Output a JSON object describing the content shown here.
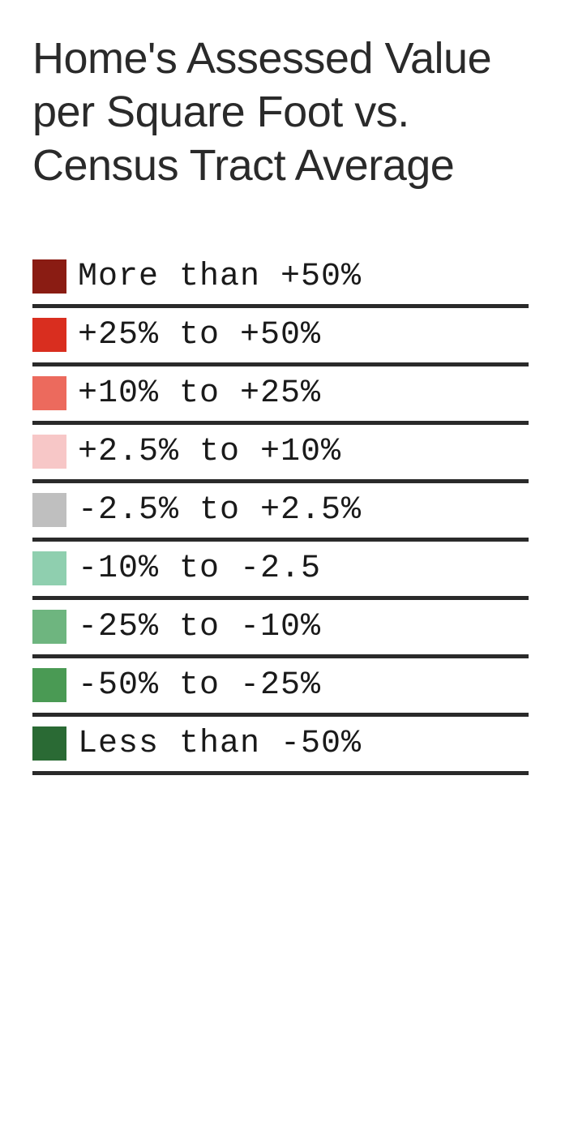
{
  "title": "Home's Assessed Value per Square Foot vs. Census Tract Average",
  "title_fontsize": 54,
  "title_color": "#2a2a2a",
  "legend": {
    "label_font": "monospace",
    "label_fontsize": 40,
    "label_color": "#1a1a1a",
    "swatch_size": 42,
    "divider_color": "#2a2a2a",
    "divider_width": 5,
    "items": [
      {
        "color": "#8a1c13",
        "label": "More than +50%"
      },
      {
        "color": "#d92e1f",
        "label": "+25% to +50%"
      },
      {
        "color": "#ec6a5d",
        "label": "+10% to +25%"
      },
      {
        "color": "#f7c7c7",
        "label": "+2.5% to +10%"
      },
      {
        "color": "#bfbfbf",
        "label": "-2.5% to +2.5%"
      },
      {
        "color": "#8fcfaf",
        "label": "-10% to -2.5"
      },
      {
        "color": "#6eb57f",
        "label": "-25% to -10%"
      },
      {
        "color": "#4a9a54",
        "label": "-50% to -25%"
      },
      {
        "color": "#2a6a34",
        "label": "Less than -50%"
      }
    ]
  },
  "background_color": "#ffffff"
}
